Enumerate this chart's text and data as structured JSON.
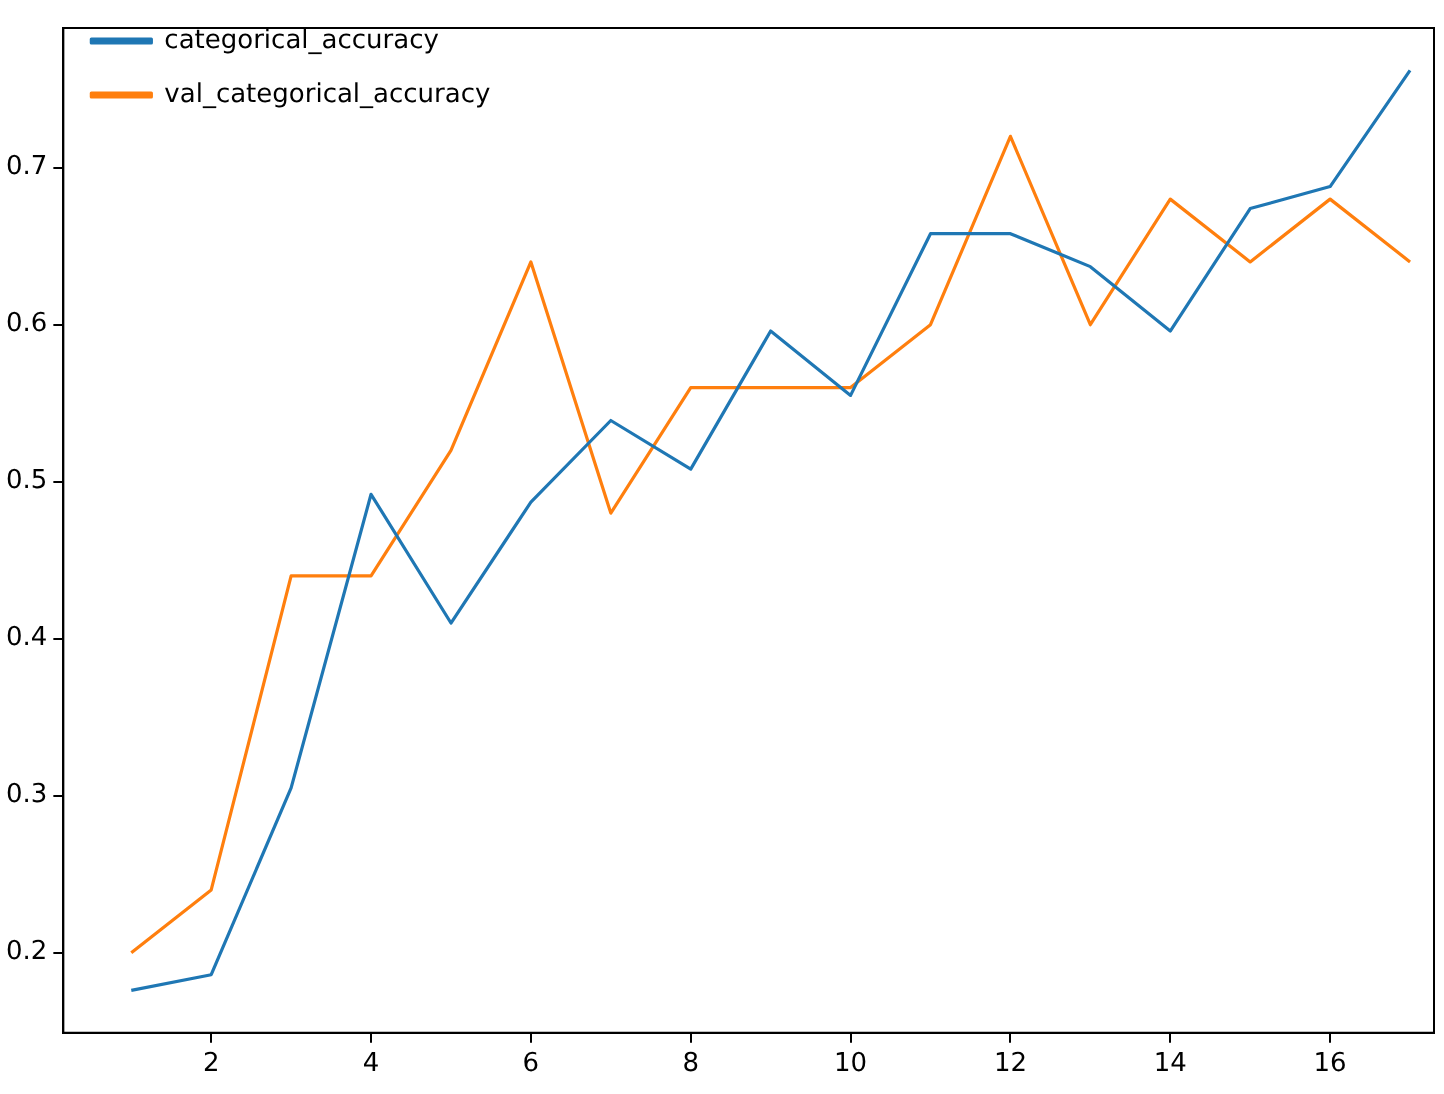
{
  "chart_data": {
    "type": "line",
    "x": [
      1,
      2,
      3,
      4,
      5,
      6,
      7,
      8,
      9,
      10,
      11,
      12,
      13,
      14,
      15,
      16,
      17
    ],
    "series": [
      {
        "name": "categorical_accuracy",
        "color": "#1f77b4",
        "values": [
          0.176,
          0.186,
          0.305,
          0.492,
          0.41,
          0.487,
          0.539,
          0.508,
          0.596,
          0.555,
          0.658,
          0.658,
          0.637,
          0.596,
          0.674,
          0.688,
          0.762
        ]
      },
      {
        "name": "val_categorical_accuracy",
        "color": "#ff7f0e",
        "values": [
          0.2,
          0.24,
          0.44,
          0.44,
          0.52,
          0.64,
          0.48,
          0.56,
          0.56,
          0.56,
          0.6,
          0.72,
          0.6,
          0.68,
          0.64,
          0.68,
          0.64
        ]
      }
    ],
    "xlim": [
      0.15,
      17.3
    ],
    "xticks": [
      2,
      4,
      6,
      8,
      10,
      12,
      14,
      16
    ],
    "ylim": [
      0.149,
      0.789
    ],
    "yticks": [
      0.2,
      0.3,
      0.4,
      0.5,
      0.6,
      0.7
    ],
    "grid": false,
    "legend": "top left",
    "marker": "none",
    "line_style": "solid"
  }
}
